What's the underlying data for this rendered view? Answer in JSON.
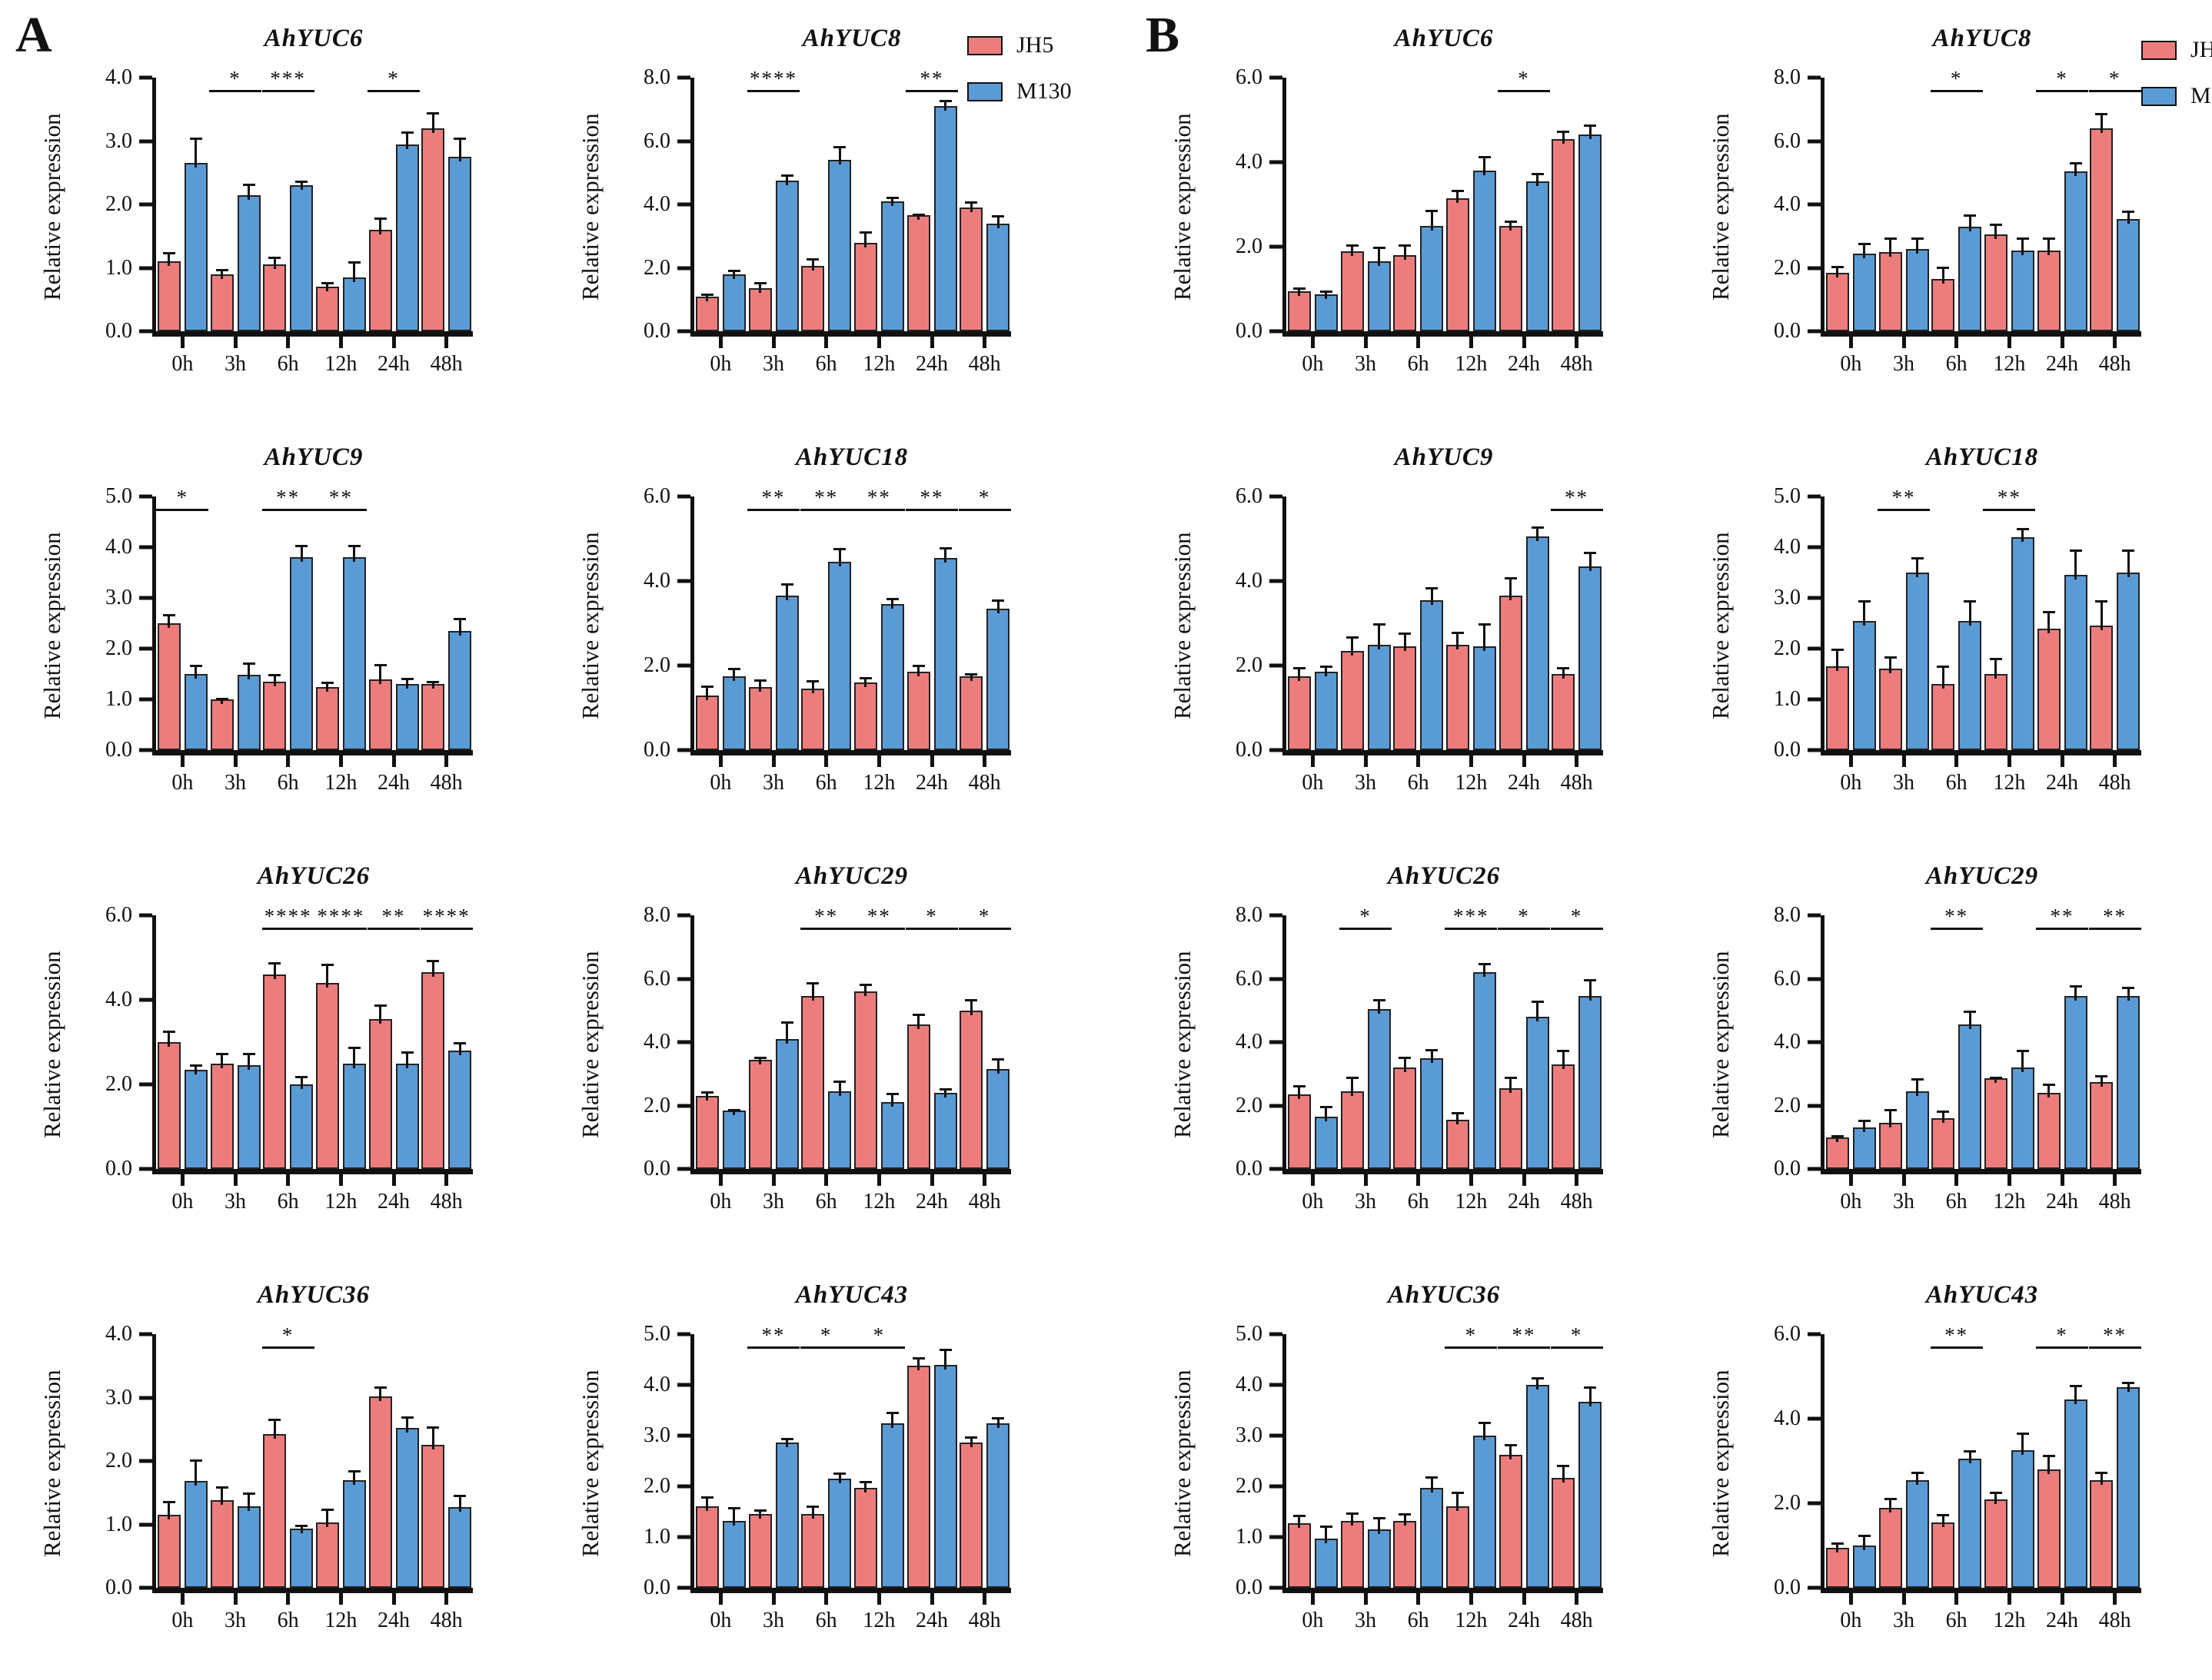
{
  "figure": {
    "panel_a_letter": "A",
    "panel_b_letter": "B",
    "ylabel": "Relative expression",
    "categories": [
      "0h",
      "3h",
      "6h",
      "12h",
      "24h",
      "48h"
    ]
  },
  "legend": {
    "items": [
      {
        "label": "JH5",
        "color": "#ED7D7D"
      },
      {
        "label": "M130",
        "color": "#5B9BD5"
      }
    ]
  },
  "panels": [
    {
      "letter": "A"
    },
    {
      "letter": "B"
    }
  ],
  "chart_data": [
    {
      "type": "bar",
      "panel": "A",
      "title": "AhYUC6",
      "ylabel": "Relative expression",
      "categories": [
        "0h",
        "3h",
        "6h",
        "12h",
        "24h",
        "48h"
      ],
      "ylim": 4,
      "ytick_step": 1,
      "series": [
        {
          "name": "JH5",
          "values": [
            1.1,
            0.9,
            1.05,
            0.7,
            1.6,
            3.2
          ],
          "errors": [
            0.15,
            0.08,
            0.12,
            0.08,
            0.2,
            0.25
          ]
        },
        {
          "name": "M130",
          "values": [
            2.65,
            2.15,
            2.3,
            0.85,
            2.95,
            2.75
          ],
          "errors": [
            0.4,
            0.18,
            0.08,
            0.25,
            0.2,
            0.3
          ]
        }
      ],
      "significance": [
        {
          "group": 1,
          "label": "*"
        },
        {
          "group": 2,
          "label": "***"
        },
        {
          "group": 4,
          "label": "*"
        }
      ]
    },
    {
      "type": "bar",
      "panel": "A",
      "title": "AhYUC8",
      "ylabel": "Relative expression",
      "categories": [
        "0h",
        "3h",
        "6h",
        "12h",
        "24h",
        "48h"
      ],
      "ylim": 8,
      "ytick_step": 2,
      "series": [
        {
          "name": "JH5",
          "values": [
            1.1,
            1.35,
            2.05,
            2.8,
            3.65,
            3.9
          ],
          "errors": [
            0.1,
            0.2,
            0.25,
            0.35,
            0.05,
            0.2
          ]
        },
        {
          "name": "M130",
          "values": [
            1.8,
            4.75,
            5.4,
            4.1,
            7.1,
            3.4
          ],
          "errors": [
            0.15,
            0.2,
            0.45,
            0.15,
            0.2,
            0.25
          ]
        }
      ],
      "significance": [
        {
          "group": 1,
          "label": "****"
        },
        {
          "group": 4,
          "label": "**"
        }
      ]
    },
    {
      "type": "bar",
      "panel": "A",
      "title": "AhYUC9",
      "ylabel": "Relative expression",
      "categories": [
        "0h",
        "3h",
        "6h",
        "12h",
        "24h",
        "48h"
      ],
      "ylim": 5,
      "ytick_step": 1,
      "series": [
        {
          "name": "JH5",
          "values": [
            2.5,
            1.0,
            1.35,
            1.25,
            1.4,
            1.3
          ],
          "errors": [
            0.18,
            0.03,
            0.15,
            0.1,
            0.3,
            0.07
          ]
        },
        {
          "name": "M130",
          "values": [
            1.5,
            1.48,
            3.8,
            3.8,
            1.3,
            2.35
          ],
          "errors": [
            0.18,
            0.25,
            0.25,
            0.25,
            0.12,
            0.25
          ]
        }
      ],
      "significance": [
        {
          "group": 0,
          "label": "*"
        },
        {
          "group": 2,
          "label": "**"
        },
        {
          "group": 3,
          "label": "**"
        }
      ]
    },
    {
      "type": "bar",
      "panel": "A",
      "title": "AhYUC18",
      "ylabel": "Relative expression",
      "categories": [
        "0h",
        "3h",
        "6h",
        "12h",
        "24h",
        "48h"
      ],
      "ylim": 6,
      "ytick_step": 2,
      "series": [
        {
          "name": "JH5",
          "values": [
            1.3,
            1.5,
            1.45,
            1.6,
            1.85,
            1.75
          ],
          "errors": [
            0.22,
            0.18,
            0.2,
            0.12,
            0.17,
            0.07
          ]
        },
        {
          "name": "M130",
          "values": [
            1.75,
            3.65,
            4.45,
            3.45,
            4.55,
            3.35
          ],
          "errors": [
            0.2,
            0.3,
            0.33,
            0.15,
            0.25,
            0.22
          ]
        }
      ],
      "significance": [
        {
          "group": 1,
          "label": "**"
        },
        {
          "group": 2,
          "label": "**"
        },
        {
          "group": 3,
          "label": "**"
        },
        {
          "group": 4,
          "label": "**"
        },
        {
          "group": 5,
          "label": "*"
        }
      ]
    },
    {
      "type": "bar",
      "panel": "A",
      "title": "AhYUC26",
      "ylabel": "Relative expression",
      "categories": [
        "0h",
        "3h",
        "6h",
        "12h",
        "24h",
        "48h"
      ],
      "ylim": 6,
      "ytick_step": 2,
      "series": [
        {
          "name": "JH5",
          "values": [
            3.0,
            2.5,
            4.6,
            4.4,
            3.55,
            4.65
          ],
          "errors": [
            0.27,
            0.25,
            0.3,
            0.45,
            0.35,
            0.3
          ]
        },
        {
          "name": "M130",
          "values": [
            2.35,
            2.45,
            2.0,
            2.5,
            2.5,
            2.8
          ],
          "errors": [
            0.13,
            0.3,
            0.2,
            0.4,
            0.28,
            0.2
          ]
        }
      ],
      "significance": [
        {
          "group": 2,
          "label": "****"
        },
        {
          "group": 3,
          "label": "****"
        },
        {
          "group": 4,
          "label": "**"
        },
        {
          "group": 5,
          "label": "****"
        }
      ]
    },
    {
      "type": "bar",
      "panel": "A",
      "title": "AhYUC29",
      "ylabel": "Relative expression",
      "categories": [
        "0h",
        "3h",
        "6h",
        "12h",
        "24h",
        "48h"
      ],
      "ylim": 8,
      "ytick_step": 2,
      "series": [
        {
          "name": "JH5",
          "values": [
            2.3,
            3.45,
            5.45,
            5.6,
            4.55,
            5.0
          ],
          "errors": [
            0.15,
            0.1,
            0.45,
            0.25,
            0.35,
            0.35
          ]
        },
        {
          "name": "M130",
          "values": [
            1.85,
            4.1,
            2.45,
            2.1,
            2.4,
            3.15
          ],
          "errors": [
            0.03,
            0.55,
            0.35,
            0.3,
            0.15,
            0.35
          ]
        }
      ],
      "significance": [
        {
          "group": 2,
          "label": "**"
        },
        {
          "group": 3,
          "label": "**"
        },
        {
          "group": 4,
          "label": "*"
        },
        {
          "group": 5,
          "label": "*"
        }
      ]
    },
    {
      "type": "bar",
      "panel": "A",
      "title": "AhYUC36",
      "ylabel": "Relative expression",
      "categories": [
        "0h",
        "3h",
        "6h",
        "12h",
        "24h",
        "48h"
      ],
      "ylim": 4,
      "ytick_step": 1,
      "series": [
        {
          "name": "JH5",
          "values": [
            1.15,
            1.38,
            2.42,
            1.03,
            3.02,
            2.25
          ],
          "errors": [
            0.22,
            0.22,
            0.25,
            0.22,
            0.15,
            0.3
          ]
        },
        {
          "name": "M130",
          "values": [
            1.68,
            1.28,
            0.93,
            1.7,
            2.52,
            1.27
          ],
          "errors": [
            0.35,
            0.22,
            0.07,
            0.15,
            0.18,
            0.2
          ]
        }
      ],
      "significance": [
        {
          "group": 2,
          "label": "*"
        }
      ]
    },
    {
      "type": "bar",
      "panel": "A",
      "title": "AhYUC43",
      "ylabel": "Relative expression",
      "categories": [
        "0h",
        "3h",
        "6h",
        "12h",
        "24h",
        "48h"
      ],
      "ylim": 5,
      "ytick_step": 1,
      "series": [
        {
          "name": "JH5",
          "values": [
            1.6,
            1.45,
            1.45,
            1.97,
            4.38,
            2.87
          ],
          "errors": [
            0.2,
            0.1,
            0.17,
            0.13,
            0.17,
            0.12
          ]
        },
        {
          "name": "M130",
          "values": [
            1.32,
            2.87,
            2.15,
            3.25,
            4.4,
            3.25
          ],
          "errors": [
            0.27,
            0.08,
            0.12,
            0.22,
            0.32,
            0.12
          ]
        }
      ],
      "significance": [
        {
          "group": 1,
          "label": "**"
        },
        {
          "group": 2,
          "label": "*"
        },
        {
          "group": 3,
          "label": "*"
        }
      ]
    },
    {
      "type": "bar",
      "panel": "B",
      "title": "AhYUC6",
      "ylabel": "Relative expression",
      "categories": [
        "0h",
        "3h",
        "6h",
        "12h",
        "24h",
        "48h"
      ],
      "ylim": 6,
      "ytick_step": 2,
      "series": [
        {
          "name": "JH5",
          "values": [
            0.95,
            1.9,
            1.8,
            3.15,
            2.5,
            4.55
          ],
          "errors": [
            0.08,
            0.15,
            0.25,
            0.2,
            0.12,
            0.2
          ]
        },
        {
          "name": "M130",
          "values": [
            0.88,
            1.65,
            2.5,
            3.8,
            3.55,
            4.65
          ],
          "errors": [
            0.08,
            0.35,
            0.38,
            0.35,
            0.2,
            0.25
          ]
        }
      ],
      "significance": [
        {
          "group": 4,
          "label": "*"
        }
      ]
    },
    {
      "type": "bar",
      "panel": "B",
      "title": "AhYUC8",
      "ylabel": "Relative expression",
      "categories": [
        "0h",
        "3h",
        "6h",
        "12h",
        "24h",
        "48h"
      ],
      "ylim": 8,
      "ytick_step": 2,
      "series": [
        {
          "name": "JH5",
          "values": [
            1.85,
            2.5,
            1.65,
            3.05,
            2.55,
            6.4
          ],
          "errors": [
            0.22,
            0.45,
            0.38,
            0.35,
            0.4,
            0.48
          ]
        },
        {
          "name": "M130",
          "values": [
            2.45,
            2.6,
            3.3,
            2.55,
            5.05,
            3.55
          ],
          "errors": [
            0.35,
            0.35,
            0.38,
            0.4,
            0.28,
            0.25
          ]
        }
      ],
      "significance": [
        {
          "group": 2,
          "label": "*"
        },
        {
          "group": 4,
          "label": "*"
        },
        {
          "group": 5,
          "label": "*"
        }
      ]
    },
    {
      "type": "bar",
      "panel": "B",
      "title": "AhYUC9",
      "ylabel": "Relative expression",
      "categories": [
        "0h",
        "3h",
        "6h",
        "12h",
        "24h",
        "48h"
      ],
      "ylim": 6,
      "ytick_step": 2,
      "series": [
        {
          "name": "JH5",
          "values": [
            1.75,
            2.35,
            2.45,
            2.5,
            3.65,
            1.8
          ],
          "errors": [
            0.22,
            0.35,
            0.33,
            0.3,
            0.45,
            0.17
          ]
        },
        {
          "name": "M130",
          "values": [
            1.85,
            2.5,
            3.55,
            2.45,
            5.05,
            4.35
          ],
          "errors": [
            0.15,
            0.5,
            0.3,
            0.55,
            0.25,
            0.35
          ]
        }
      ],
      "significance": [
        {
          "group": 5,
          "label": "**"
        }
      ]
    },
    {
      "type": "bar",
      "panel": "B",
      "title": "AhYUC18",
      "ylabel": "Relative expression",
      "categories": [
        "0h",
        "3h",
        "6h",
        "12h",
        "24h",
        "48h"
      ],
      "ylim": 5,
      "ytick_step": 1,
      "series": [
        {
          "name": "JH5",
          "values": [
            1.65,
            1.6,
            1.3,
            1.5,
            2.4,
            2.45
          ],
          "errors": [
            0.35,
            0.25,
            0.37,
            0.32,
            0.35,
            0.5
          ]
        },
        {
          "name": "M130",
          "values": [
            2.55,
            3.5,
            2.55,
            4.2,
            3.45,
            3.5
          ],
          "errors": [
            0.4,
            0.3,
            0.4,
            0.18,
            0.5,
            0.45
          ]
        }
      ],
      "significance": [
        {
          "group": 1,
          "label": "**"
        },
        {
          "group": 3,
          "label": "**"
        }
      ]
    },
    {
      "type": "bar",
      "panel": "B",
      "title": "AhYUC26",
      "ylabel": "Relative expression",
      "categories": [
        "0h",
        "3h",
        "6h",
        "12h",
        "24h",
        "48h"
      ],
      "ylim": 8,
      "ytick_step": 2,
      "series": [
        {
          "name": "JH5",
          "values": [
            2.35,
            2.45,
            3.2,
            1.55,
            2.55,
            3.3
          ],
          "errors": [
            0.3,
            0.45,
            0.35,
            0.25,
            0.35,
            0.45
          ]
        },
        {
          "name": "M130",
          "values": [
            1.65,
            5.05,
            3.5,
            6.2,
            4.8,
            5.45
          ],
          "errors": [
            0.35,
            0.3,
            0.28,
            0.3,
            0.5,
            0.55
          ]
        }
      ],
      "significance": [
        {
          "group": 1,
          "label": "*"
        },
        {
          "group": 3,
          "label": "***"
        },
        {
          "group": 4,
          "label": "*"
        },
        {
          "group": 5,
          "label": "*"
        }
      ]
    },
    {
      "type": "bar",
      "panel": "B",
      "title": "AhYUC29",
      "ylabel": "Relative expression",
      "categories": [
        "0h",
        "3h",
        "6h",
        "12h",
        "24h",
        "48h"
      ],
      "ylim": 8,
      "ytick_step": 2,
      "series": [
        {
          "name": "JH5",
          "values": [
            1.0,
            1.45,
            1.6,
            2.85,
            2.4,
            2.75
          ],
          "errors": [
            0.07,
            0.45,
            0.25,
            0.05,
            0.3,
            0.2
          ]
        },
        {
          "name": "M130",
          "values": [
            1.3,
            2.45,
            4.55,
            3.2,
            5.45,
            5.45
          ],
          "errors": [
            0.25,
            0.4,
            0.45,
            0.55,
            0.35,
            0.3
          ]
        }
      ],
      "significance": [
        {
          "group": 2,
          "label": "**"
        },
        {
          "group": 4,
          "label": "**"
        },
        {
          "group": 5,
          "label": "**"
        }
      ]
    },
    {
      "type": "bar",
      "panel": "B",
      "title": "AhYUC36",
      "ylabel": "Relative expression",
      "categories": [
        "0h",
        "3h",
        "6h",
        "12h",
        "24h",
        "48h"
      ],
      "ylim": 5,
      "ytick_step": 1,
      "series": [
        {
          "name": "JH5",
          "values": [
            1.27,
            1.32,
            1.32,
            1.6,
            2.62,
            2.17
          ],
          "errors": [
            0.17,
            0.17,
            0.15,
            0.3,
            0.22,
            0.25
          ]
        },
        {
          "name": "M130",
          "values": [
            0.97,
            1.15,
            1.97,
            3.0,
            4.0,
            3.67
          ],
          "errors": [
            0.25,
            0.25,
            0.23,
            0.28,
            0.15,
            0.3
          ]
        }
      ],
      "significance": [
        {
          "group": 3,
          "label": "*"
        },
        {
          "group": 4,
          "label": "**"
        },
        {
          "group": 5,
          "label": "*"
        }
      ]
    },
    {
      "type": "bar",
      "panel": "B",
      "title": "AhYUC43",
      "ylabel": "Relative expression",
      "categories": [
        "0h",
        "3h",
        "6h",
        "12h",
        "24h",
        "48h"
      ],
      "ylim": 6,
      "ytick_step": 2,
      "series": [
        {
          "name": "JH5",
          "values": [
            0.95,
            1.9,
            1.55,
            2.1,
            2.8,
            2.55
          ],
          "errors": [
            0.12,
            0.22,
            0.2,
            0.18,
            0.35,
            0.2
          ]
        },
        {
          "name": "M130",
          "values": [
            1.0,
            2.55,
            3.05,
            3.25,
            4.45,
            4.75
          ],
          "errors": [
            0.25,
            0.2,
            0.2,
            0.42,
            0.35,
            0.12
          ]
        }
      ],
      "significance": [
        {
          "group": 2,
          "label": "**"
        },
        {
          "group": 4,
          "label": "*"
        },
        {
          "group": 5,
          "label": "**"
        }
      ]
    }
  ]
}
